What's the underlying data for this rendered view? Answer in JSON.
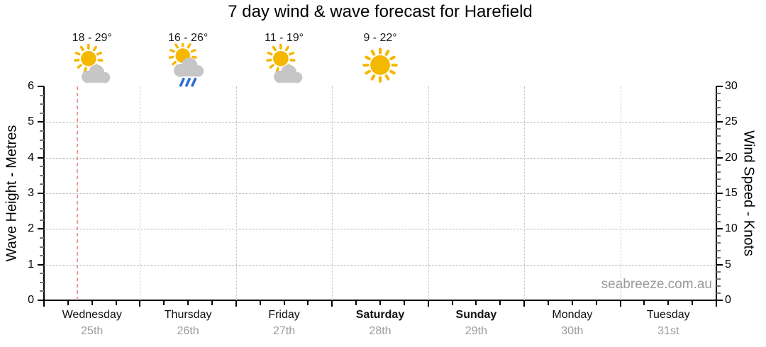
{
  "title": "7 day wind & wave forecast for Harefield",
  "watermark": "seabreeze.com.au",
  "colors": {
    "sun": "#F5B800",
    "cloud": "#C6C6C6",
    "rain": "#2B6FD6",
    "now_line": "#F19999",
    "h_grid": "#AAAAAA",
    "v_grid": "#C2C2C2",
    "axis": "#000000",
    "minor_tick": "#777777",
    "day_text": "#111111",
    "date_text": "#9A9A9A",
    "temp_text": "#1A1A1A",
    "tick_label": "#000000",
    "title_text": "#000000",
    "watermark_text": "#999999"
  },
  "forecast_days": [
    {
      "name": "Wednesday",
      "date": "25th",
      "weekend": false,
      "temp_range": "18 - 29°",
      "icon": "mostly-sunny"
    },
    {
      "name": "Thursday",
      "date": "26th",
      "weekend": false,
      "temp_range": "16 - 26°",
      "icon": "sunny-shower"
    },
    {
      "name": "Friday",
      "date": "27th",
      "weekend": false,
      "temp_range": "11 - 19°",
      "icon": "mostly-sunny"
    },
    {
      "name": "Saturday",
      "date": "28th",
      "weekend": true,
      "temp_range": "9 - 22°",
      "icon": "sunny"
    },
    {
      "name": "Sunday",
      "date": "29th",
      "weekend": true,
      "temp_range": null,
      "icon": null
    },
    {
      "name": "Monday",
      "date": "30th",
      "weekend": false,
      "temp_range": null,
      "icon": null
    },
    {
      "name": "Tuesday",
      "date": "31st",
      "weekend": false,
      "temp_range": null,
      "icon": null
    }
  ],
  "chart_data": {
    "type": "line",
    "title": "7 day wind & wave forecast for Harefield",
    "categories": [
      "Wednesday 25th",
      "Thursday 26th",
      "Friday 27th",
      "Saturday 28th",
      "Sunday 29th",
      "Monday 30th",
      "Tuesday 31st"
    ],
    "series": [],
    "left_axis": {
      "label": "Wave Height - Metres",
      "min": 0,
      "max": 6,
      "major_ticks": [
        0,
        1,
        2,
        3,
        4,
        5,
        6
      ],
      "minor_step": 0.25,
      "gridline_values": [
        1,
        2,
        3,
        4,
        5
      ]
    },
    "right_axis": {
      "label": "Wind Speed - Knots",
      "min": 0,
      "max": 30,
      "major_ticks": [
        0,
        5,
        10,
        15,
        20,
        25,
        30
      ],
      "minor_step": 1,
      "gridline_values": [
        5,
        10,
        15,
        20,
        25
      ]
    },
    "x_axis": {
      "day_count": 7,
      "minor_ticks_per_day": 4,
      "day_boundary_gridlines": true
    },
    "now_marker": {
      "day_index": 0,
      "day_fraction": 0.35
    },
    "grid": true,
    "legend_position": "none"
  }
}
